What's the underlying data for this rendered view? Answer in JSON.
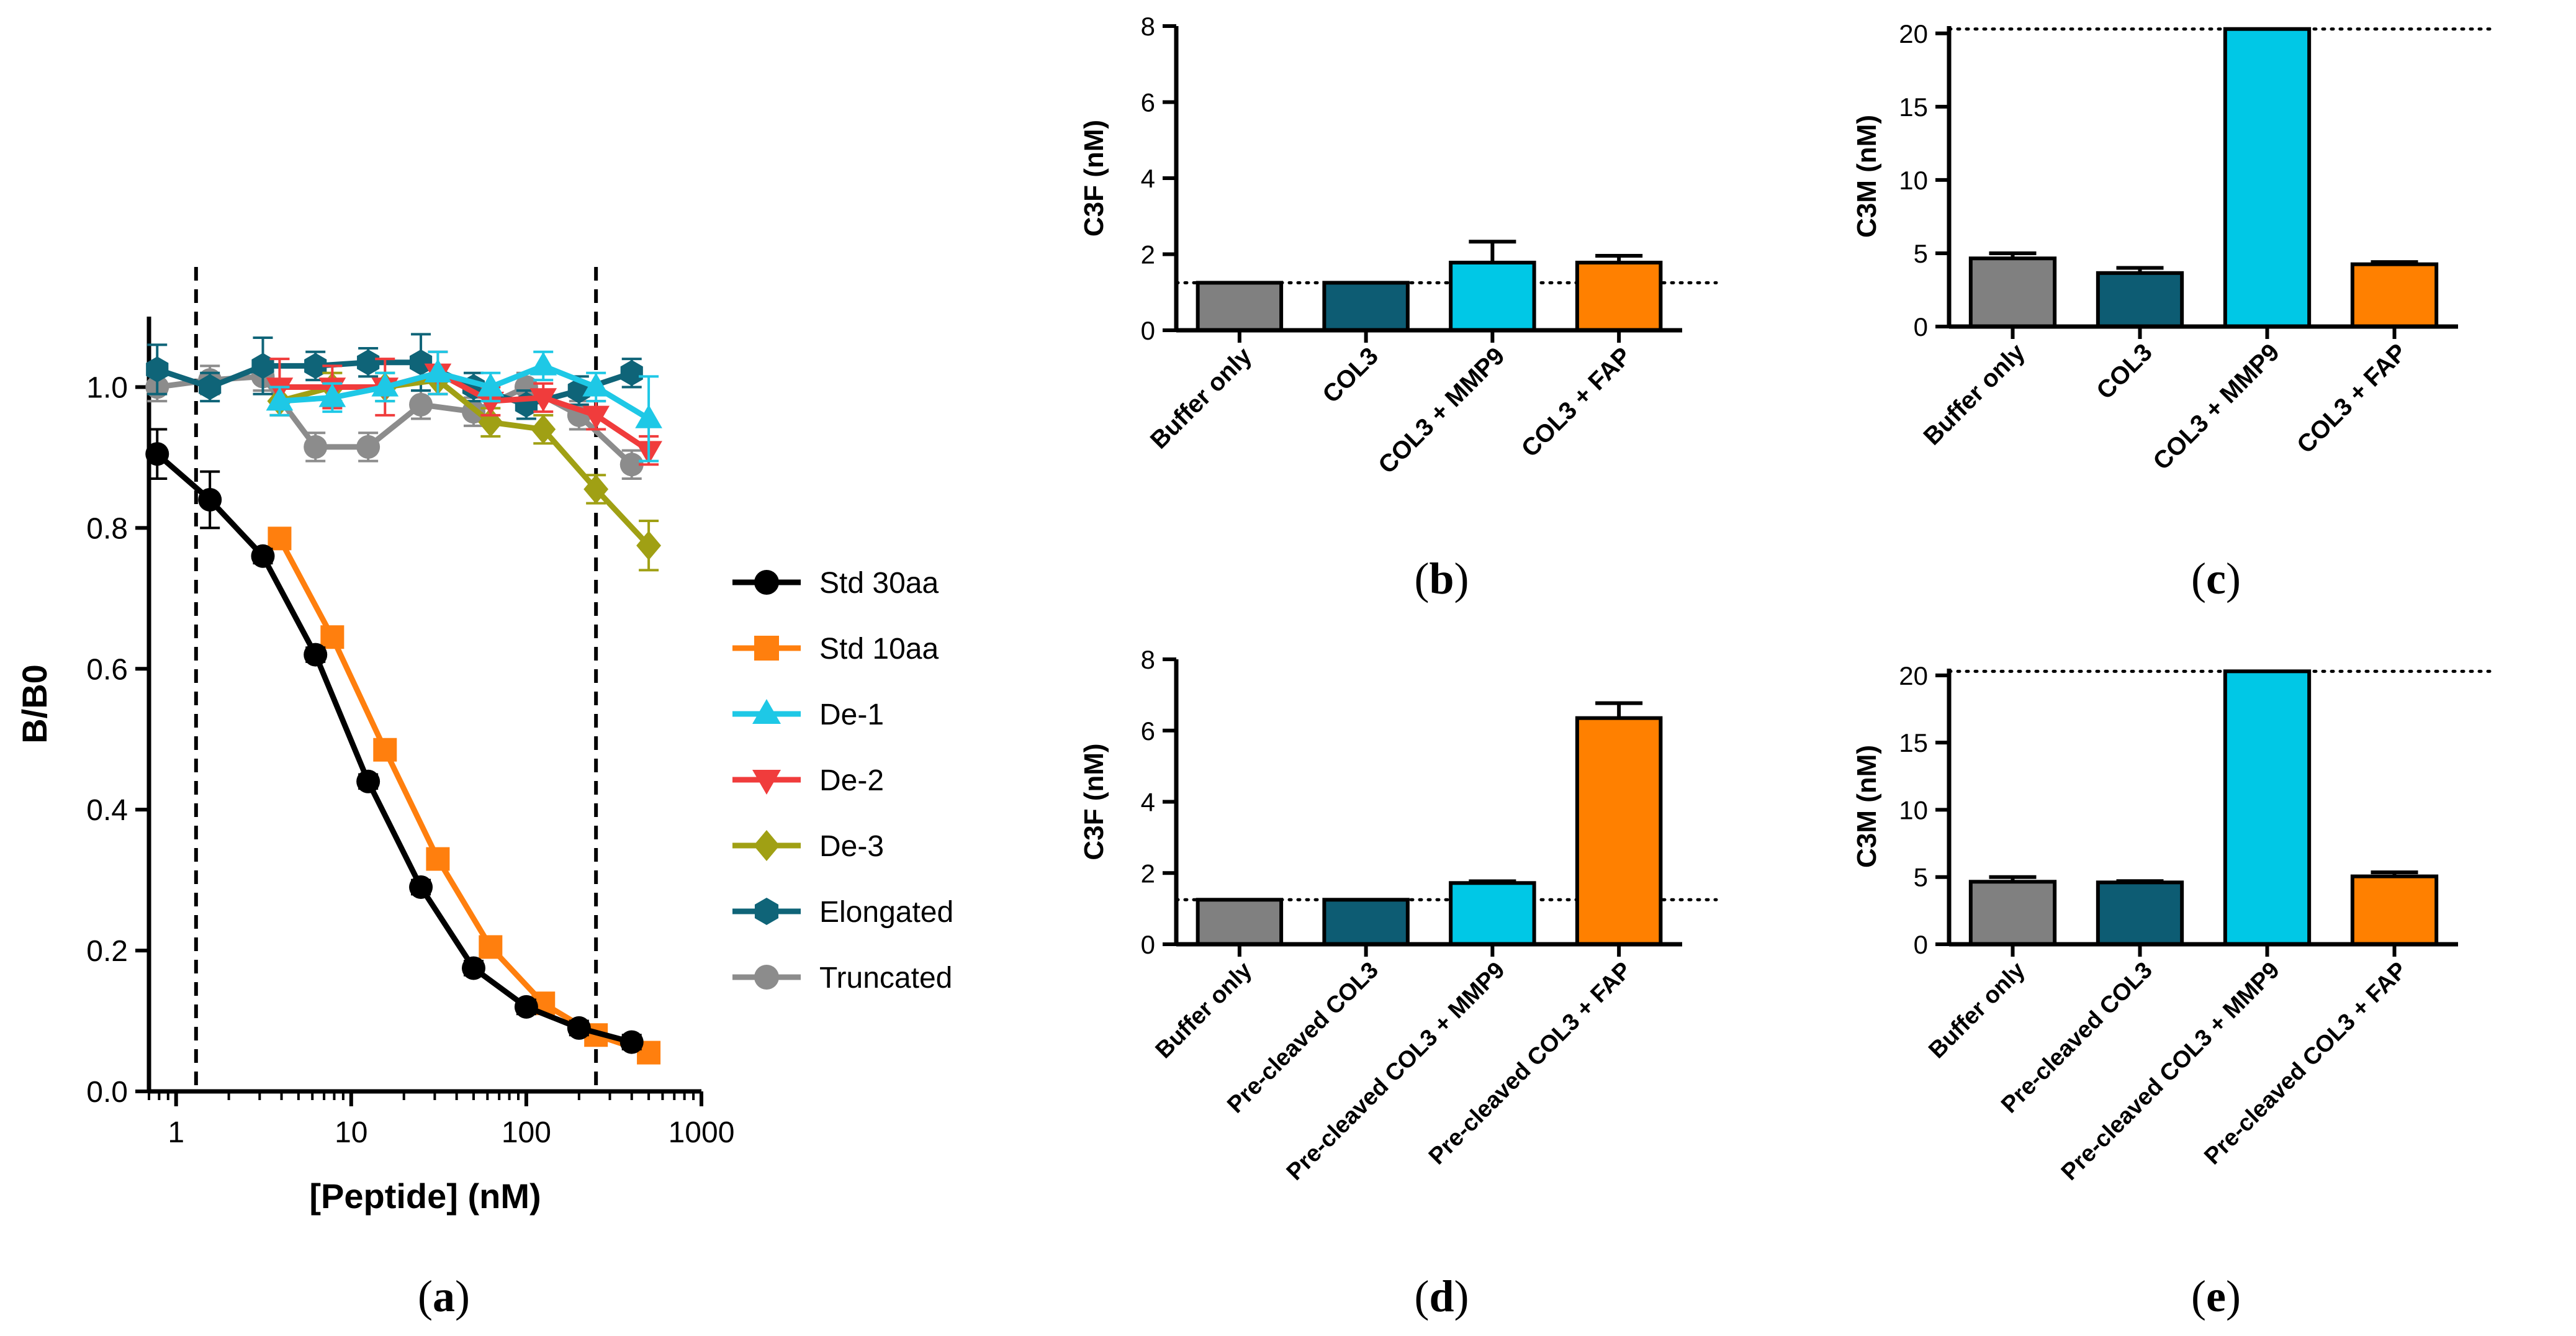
{
  "chart_data": [
    {
      "panel": "(a)",
      "panel_letter": "a",
      "type": "line",
      "xlabel": "[Peptide] (nM)",
      "ylabel": "B/B0",
      "xscale": "log",
      "xlim": [
        0.7,
        1000
      ],
      "ylim": [
        0,
        1.1
      ],
      "xticks": [
        1,
        10,
        100,
        1000
      ],
      "xtick_labels": [
        "1",
        "10",
        "100",
        "1000"
      ],
      "yticks": [
        0.0,
        0.2,
        0.4,
        0.6,
        0.8,
        1.0
      ],
      "ytick_labels": [
        "0.0",
        "0.2",
        "0.4",
        "0.6",
        "0.8",
        "1.0"
      ],
      "reference_lines_x": [
        1.3,
        250
      ],
      "legend_position": "right",
      "series": [
        {
          "name": "Std 30aa",
          "color": "#000000",
          "marker": "circle",
          "x": [
            0.78,
            1.56,
            3.13,
            6.25,
            12.5,
            25,
            50,
            100,
            200,
            400
          ],
          "y": [
            0.905,
            0.84,
            0.76,
            0.62,
            0.44,
            0.29,
            0.175,
            0.12,
            0.09,
            0.07
          ],
          "err": [
            0.035,
            0.04,
            0.01,
            0.01,
            0.01,
            0.01,
            0.01,
            0.01,
            0.01,
            0.01
          ]
        },
        {
          "name": "Std 10aa",
          "color": "#FF7F0E",
          "marker": "square",
          "x": [
            3.9,
            7.8,
            15.6,
            31.25,
            62.5,
            125,
            250,
            500
          ],
          "y": [
            0.785,
            0.645,
            0.485,
            0.33,
            0.205,
            0.125,
            0.08,
            0.055
          ],
          "err": [
            0.01,
            0.01,
            0.01,
            0.01,
            0.01,
            0.01,
            0.01,
            0.01
          ]
        },
        {
          "name": "De-1",
          "color": "#1EC8E6",
          "marker": "triangle-up",
          "x": [
            3.9,
            7.8,
            15.6,
            31.25,
            62.5,
            125,
            250,
            500
          ],
          "y": [
            0.98,
            0.985,
            1.0,
            1.02,
            1.0,
            1.03,
            1.0,
            0.955
          ],
          "err": [
            0.02,
            0.02,
            0.02,
            0.03,
            0.02,
            0.02,
            0.02,
            0.06
          ]
        },
        {
          "name": "De-2",
          "color": "#F03C3C",
          "marker": "triangle-down",
          "x": [
            3.9,
            7.8,
            15.6,
            31.25,
            62.5,
            125,
            250,
            500
          ],
          "y": [
            1.0,
            1.0,
            1.0,
            1.02,
            0.98,
            0.985,
            0.96,
            0.91
          ],
          "err": [
            0.04,
            0.03,
            0.04,
            0.03,
            0.02,
            0.02,
            0.02,
            0.02
          ]
        },
        {
          "name": "De-3",
          "color": "#A0A014",
          "marker": "diamond",
          "x": [
            3.9,
            7.8,
            15.6,
            31.25,
            62.5,
            125,
            250,
            500
          ],
          "y": [
            0.98,
            1.0,
            1.0,
            1.01,
            0.95,
            0.94,
            0.855,
            0.775
          ],
          "err": [
            0.02,
            0.02,
            0.02,
            0.02,
            0.02,
            0.02,
            0.02,
            0.035
          ]
        },
        {
          "name": "Elongated",
          "color": "#0F6478",
          "marker": "hexagon",
          "x": [
            0.78,
            1.56,
            3.13,
            6.25,
            12.5,
            25,
            50,
            100,
            200,
            400
          ],
          "y": [
            1.025,
            1.0,
            1.03,
            1.03,
            1.035,
            1.035,
            1.0,
            0.975,
            0.995,
            1.02
          ],
          "err": [
            0.035,
            0.02,
            0.04,
            0.02,
            0.02,
            0.04,
            0.02,
            0.02,
            0.02,
            0.02
          ]
        },
        {
          "name": "Truncated",
          "color": "#8C8C8C",
          "marker": "circle",
          "x": [
            0.78,
            1.56,
            3.13,
            6.25,
            12.5,
            25,
            50,
            100,
            200,
            400
          ],
          "y": [
            1.0,
            1.01,
            1.015,
            0.915,
            0.915,
            0.975,
            0.965,
            1.0,
            0.96,
            0.89
          ],
          "err": [
            0.02,
            0.02,
            0.02,
            0.02,
            0.02,
            0.02,
            0.02,
            0.02,
            0.02,
            0.02
          ]
        }
      ]
    },
    {
      "panel": "(b)",
      "panel_letter": "b",
      "type": "bar",
      "ylabel": "C3F (nM)",
      "ylim": [
        0,
        8
      ],
      "yticks": [
        0,
        2,
        4,
        6,
        8
      ],
      "ytick_labels": [
        "0",
        "2",
        "4",
        "6",
        "8"
      ],
      "reference_line_y": 1.25,
      "categories": [
        "Buffer only",
        "COL3",
        "COL3 + MMP9",
        "COL3 + FAP"
      ],
      "values": [
        1.25,
        1.25,
        1.78,
        1.78
      ],
      "errors": [
        0,
        0,
        0.55,
        0.18
      ],
      "colors": [
        "#808080",
        "#0D5C73",
        "#00C8E6",
        "#FF8000"
      ]
    },
    {
      "panel": "(c)",
      "panel_letter": "c",
      "type": "bar",
      "ylabel": "C3M (nM)",
      "ylim": [
        0,
        20.5
      ],
      "yticks": [
        0,
        5,
        10,
        15,
        20
      ],
      "ytick_labels": [
        "0",
        "5",
        "10",
        "15",
        "20"
      ],
      "reference_line_y": 20.3,
      "categories": [
        "Buffer only",
        "COL3",
        "COL3 + MMP9",
        "COL3 + FAP"
      ],
      "values": [
        4.65,
        3.65,
        20.3,
        4.25
      ],
      "errors": [
        0.35,
        0.35,
        0,
        0.15
      ],
      "colors": [
        "#808080",
        "#0D5C73",
        "#00C8E6",
        "#FF8000"
      ]
    },
    {
      "panel": "(d)",
      "panel_letter": "d",
      "type": "bar",
      "ylabel": "C3F (nM)",
      "ylim": [
        0,
        8
      ],
      "yticks": [
        0,
        2,
        4,
        6,
        8
      ],
      "ytick_labels": [
        "0",
        "2",
        "4",
        "6",
        "8"
      ],
      "reference_line_y": 1.25,
      "categories": [
        "Buffer only",
        "Pre-cleaved COL3",
        "Pre-cleaved COL3 + MMP9",
        "Pre-cleaved COL3 + FAP"
      ],
      "values": [
        1.25,
        1.25,
        1.72,
        6.35
      ],
      "errors": [
        0,
        0,
        0.05,
        0.42
      ],
      "colors": [
        "#808080",
        "#0D5C73",
        "#00C8E6",
        "#FF8000"
      ]
    },
    {
      "panel": "(e)",
      "panel_letter": "e",
      "type": "bar",
      "ylabel": "C3M (nM)",
      "ylim": [
        0,
        20.5
      ],
      "yticks": [
        0,
        5,
        10,
        15,
        20
      ],
      "ytick_labels": [
        "0",
        "5",
        "10",
        "15",
        "20"
      ],
      "reference_line_y": 20.3,
      "categories": [
        "Buffer only",
        "Pre-cleaved COL3",
        "Pre-cleaved COL3 + MMP9",
        "Pre-cleaved COL3 + FAP"
      ],
      "values": [
        4.65,
        4.6,
        20.3,
        5.05
      ],
      "errors": [
        0.35,
        0.1,
        0,
        0.3
      ],
      "colors": [
        "#808080",
        "#0D5C73",
        "#00C8E6",
        "#FF8000"
      ]
    }
  ]
}
